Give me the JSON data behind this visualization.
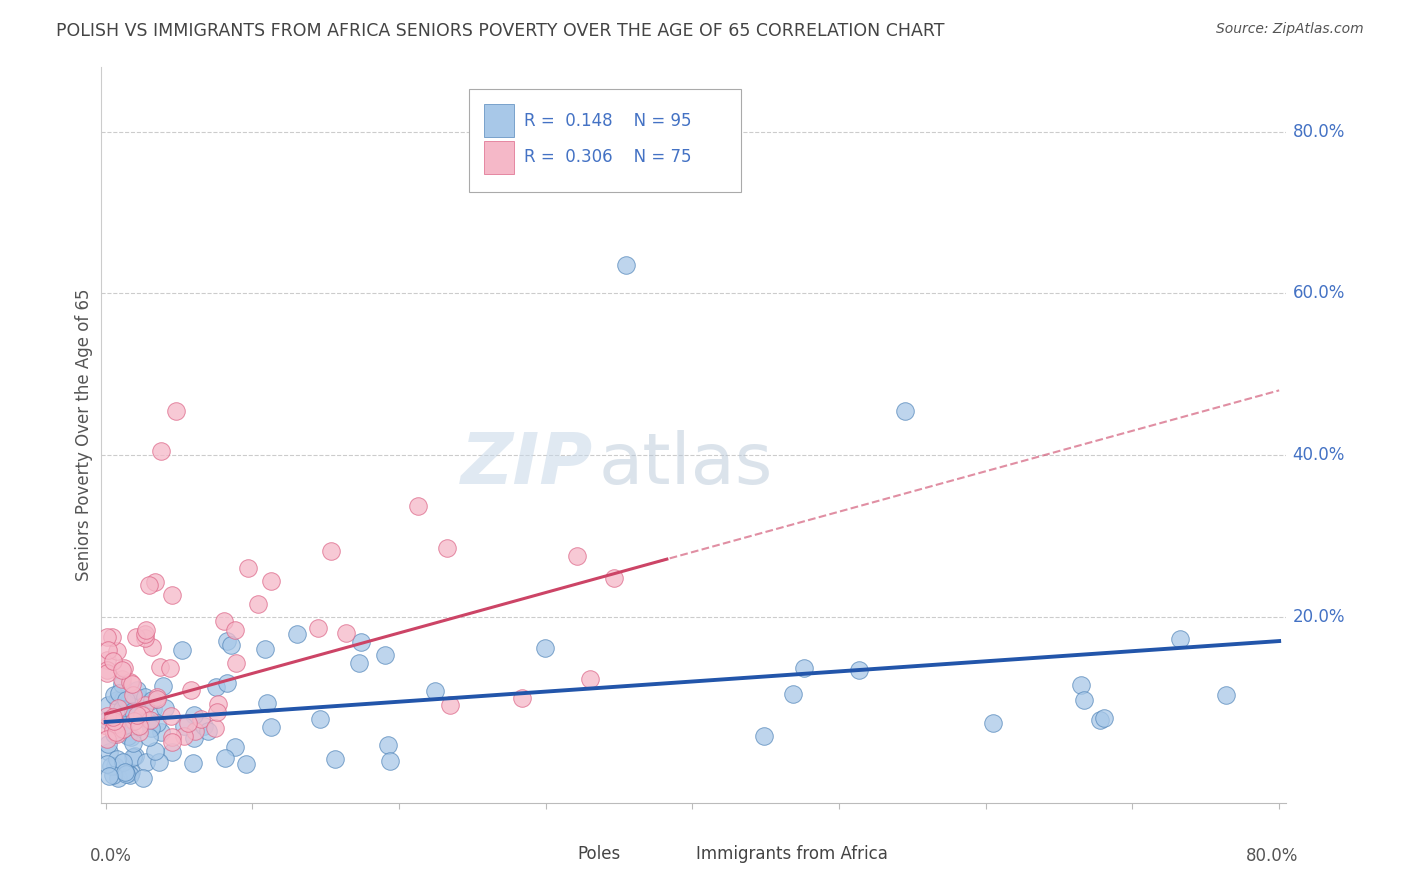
{
  "title": "POLISH VS IMMIGRANTS FROM AFRICA SENIORS POVERTY OVER THE AGE OF 65 CORRELATION CHART",
  "source": "Source: ZipAtlas.com",
  "ylabel": "Seniors Poverty Over the Age of 65",
  "ytick_values": [
    0.8,
    0.6,
    0.4,
    0.2
  ],
  "xlim": [
    0.0,
    0.8
  ],
  "ylim": [
    -0.03,
    0.88
  ],
  "watermark_zip": "ZIP",
  "watermark_atlas": "atlas",
  "series": [
    {
      "name": "Poles",
      "R": "0.148",
      "N": "95",
      "color": "#a8c8e8",
      "edge_color": "#5588bb",
      "line_color": "#2255aa",
      "line_style": "solid"
    },
    {
      "name": "Immigrants from Africa",
      "R": "0.306",
      "N": "75",
      "color": "#f5b8c8",
      "edge_color": "#dd6688",
      "line_color": "#cc4466",
      "line_style": "solid"
    }
  ],
  "legend_text_color": "#4472c4",
  "background_color": "#ffffff",
  "grid_color": "#cccccc",
  "axis_label_color": "#555555",
  "right_label_color": "#4472c4",
  "bottom_label_color": "#555555"
}
